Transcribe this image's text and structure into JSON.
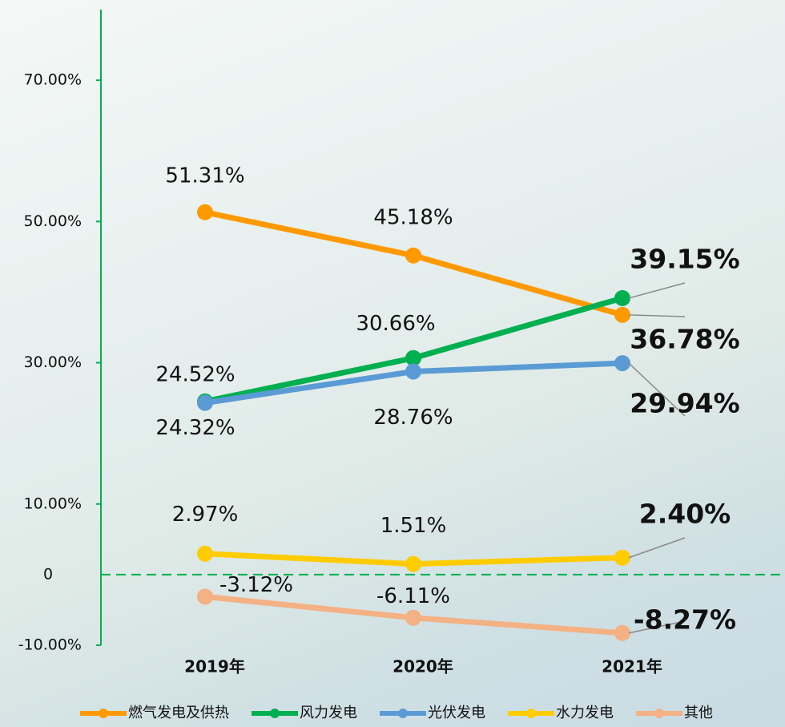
{
  "chart_data": {
    "type": "line",
    "categories": [
      "2019年",
      "2020年",
      "2021年"
    ],
    "ylim": [
      -10,
      80
    ],
    "yticks": [
      {
        "value": 70,
        "label": "70.00%"
      },
      {
        "value": 50,
        "label": "50.00%"
      },
      {
        "value": 30,
        "label": "30.00%"
      },
      {
        "value": 10,
        "label": "10.00%"
      },
      0,
      {
        "value": -10,
        "label": "-10.00%"
      }
    ],
    "axis_color": "#00b050",
    "legend": "bottom",
    "series": [
      {
        "name": "燃气发电及供热",
        "color": "#ff9900",
        "values": [
          51.31,
          45.18,
          36.78
        ],
        "value_labels": [
          "51.31%",
          "45.18%",
          "36.78%"
        ]
      },
      {
        "name": "风力发电",
        "color": "#00b050",
        "values": [
          24.52,
          30.66,
          39.15
        ],
        "value_labels": [
          "24.52%",
          "30.66%",
          "39.15%"
        ]
      },
      {
        "name": "光伏发电",
        "color": "#5b9bd5",
        "values": [
          24.32,
          28.76,
          29.94
        ],
        "value_labels": [
          "24.32%",
          "28.76%",
          "29.94%"
        ]
      },
      {
        "name": "水力发电",
        "color": "#ffcc00",
        "values": [
          2.97,
          1.51,
          2.4
        ],
        "value_labels": [
          "2.97%",
          "1.51%",
          "2.40%"
        ]
      },
      {
        "name": "其他",
        "color": "#f4b183",
        "values": [
          -3.12,
          -6.11,
          -8.27
        ],
        "value_labels": [
          "-3.12%",
          "-6.11%",
          "-8.27%"
        ]
      }
    ]
  }
}
